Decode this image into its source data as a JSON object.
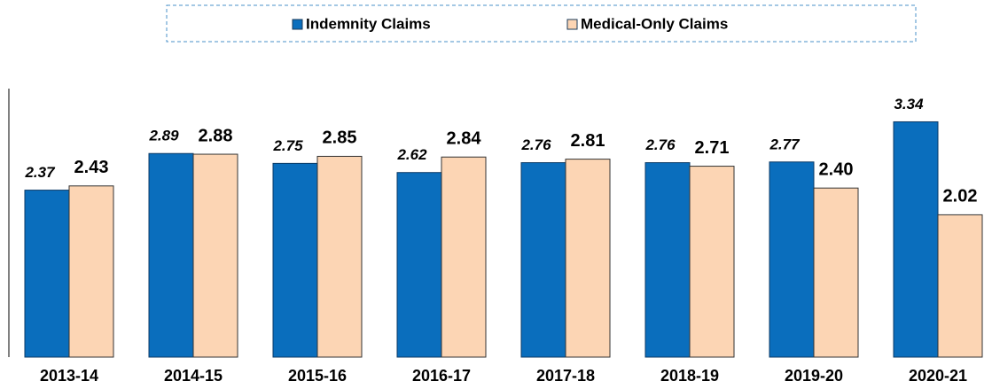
{
  "chart_data": {
    "type": "bar",
    "categories": [
      "2013-14",
      "2014-15",
      "2015-16",
      "2016-17",
      "2017-18",
      "2018-19",
      "2019-20",
      "2020-21"
    ],
    "series": [
      {
        "name": "Indemnity Claims",
        "color": "#0a6ebd",
        "values": [
          2.37,
          2.89,
          2.75,
          2.62,
          2.76,
          2.76,
          2.77,
          3.34
        ],
        "value_labels": [
          "2.37",
          "2.89",
          "2.75",
          "2.62",
          "2.76",
          "2.76",
          "2.77",
          "3.34"
        ]
      },
      {
        "name": "Medical-Only Claims",
        "color": "#fcd5b4",
        "values": [
          2.43,
          2.88,
          2.85,
          2.84,
          2.81,
          2.71,
          2.4,
          2.02
        ],
        "value_labels": [
          "2.43",
          "2.88",
          "2.85",
          "2.84",
          "2.81",
          "2.71",
          "2.40",
          "2.02"
        ]
      }
    ],
    "ylim": [
      0,
      4
    ],
    "legend": "top"
  }
}
